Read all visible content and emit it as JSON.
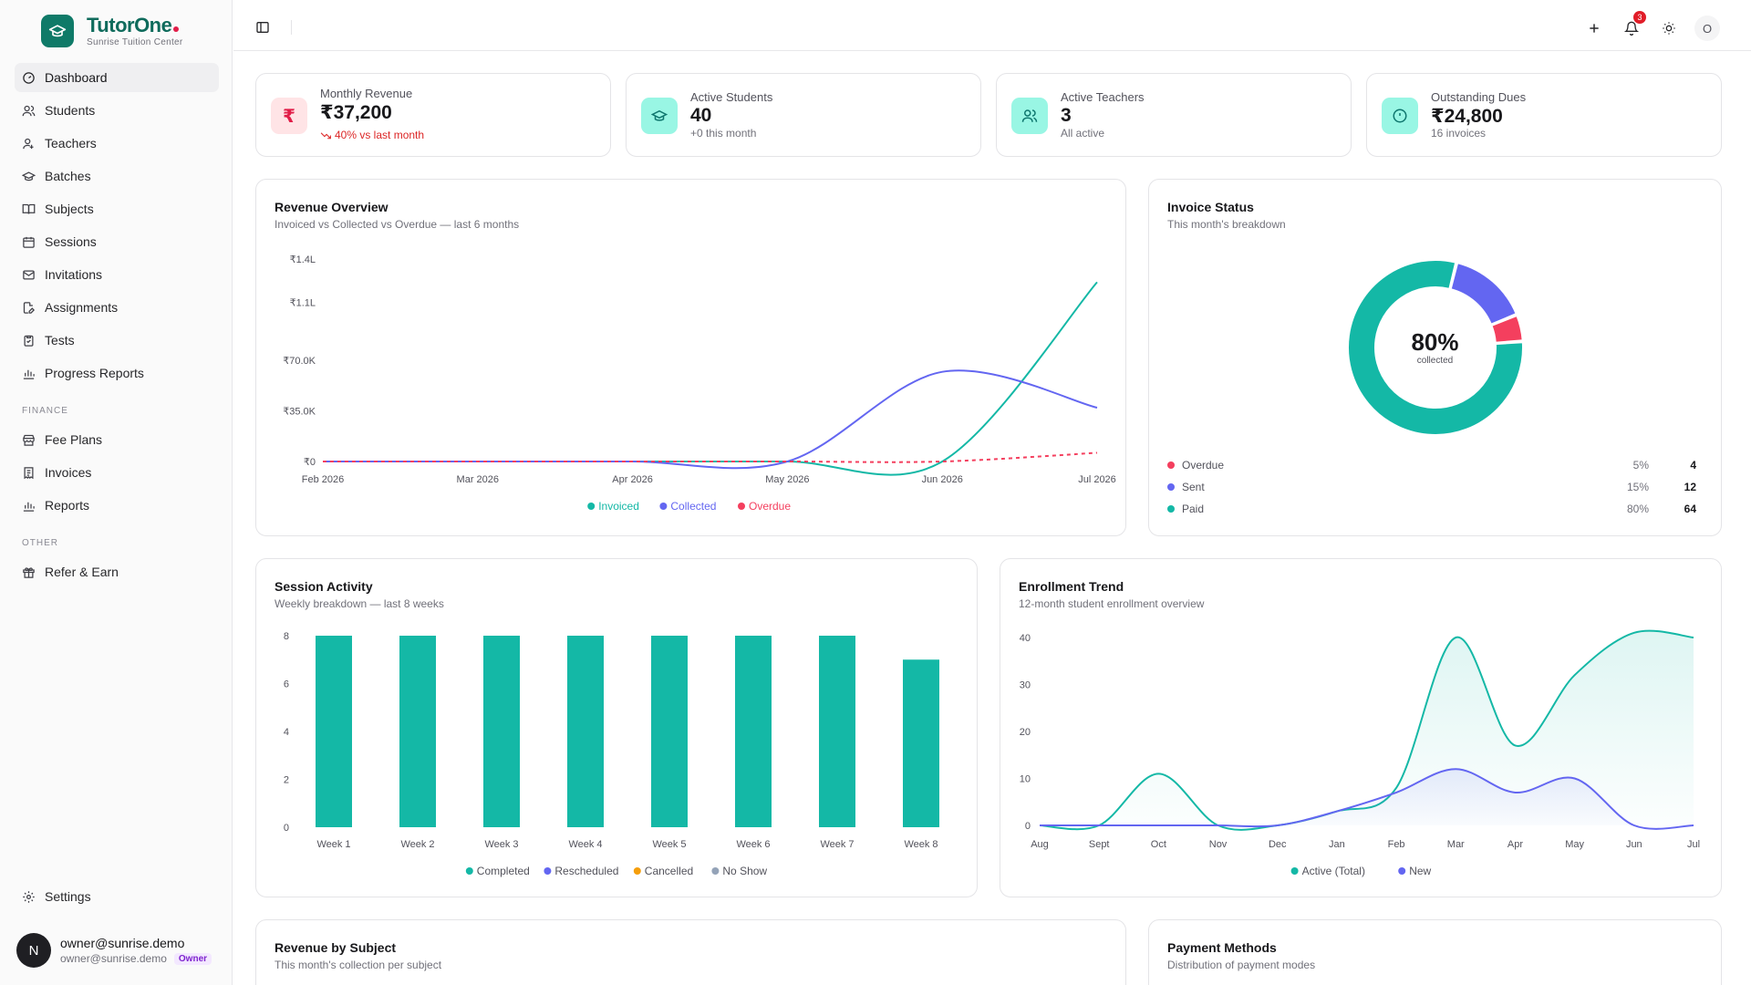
{
  "brand": {
    "name": "TutorOne",
    "subtitle": "Sunrise Tuition Center"
  },
  "nav": {
    "items": [
      {
        "label": "Dashboard",
        "icon": "dashboard-icon",
        "active": true
      },
      {
        "label": "Students",
        "icon": "users-icon"
      },
      {
        "label": "Teachers",
        "icon": "teacher-icon"
      },
      {
        "label": "Batches",
        "icon": "graduation-cap-icon"
      },
      {
        "label": "Subjects",
        "icon": "book-icon"
      },
      {
        "label": "Sessions",
        "icon": "calendar-icon"
      },
      {
        "label": "Invitations",
        "icon": "mail-icon"
      },
      {
        "label": "Assignments",
        "icon": "file-pen-icon"
      },
      {
        "label": "Tests",
        "icon": "clipboard-icon"
      },
      {
        "label": "Progress Reports",
        "icon": "bar-chart-icon"
      }
    ],
    "finance_label": "FINANCE",
    "finance_items": [
      {
        "label": "Fee Plans",
        "icon": "store-icon"
      },
      {
        "label": "Invoices",
        "icon": "receipt-icon"
      },
      {
        "label": "Reports",
        "icon": "bar-chart-icon"
      }
    ],
    "other_label": "OTHER",
    "other_items": [
      {
        "label": "Refer & Earn",
        "icon": "gift-icon"
      }
    ],
    "settings_label": "Settings"
  },
  "user": {
    "initial": "N",
    "name": "owner@sunrise.demo",
    "email": "owner@sunrise.demo",
    "role": "Owner"
  },
  "header": {
    "notification_count": "3",
    "avatar_initial": "O"
  },
  "stats": [
    {
      "label": "Monthly Revenue",
      "value": "₹37,200",
      "sub": "40% vs last month",
      "icon": "rupee-icon",
      "trend": "down"
    },
    {
      "label": "Active Students",
      "value": "40",
      "sub": "+0 this month",
      "icon": "graduation-cap-icon"
    },
    {
      "label": "Active Teachers",
      "value": "3",
      "sub": "All active",
      "icon": "users-icon"
    },
    {
      "label": "Outstanding Dues",
      "value": "₹24,800",
      "sub": "16 invoices",
      "icon": "alert-circle-icon"
    }
  ],
  "revenue_overview": {
    "title": "Revenue Overview",
    "subtitle": "Invoiced vs Collected vs Overdue — last 6 months"
  },
  "invoice_status": {
    "title": "Invoice Status",
    "subtitle": "This month's breakdown",
    "center_value": "80%",
    "center_label": "collected",
    "rows": [
      {
        "label": "Overdue",
        "pct": "5%",
        "count": "4",
        "color": "#f43f5e"
      },
      {
        "label": "Sent",
        "pct": "15%",
        "count": "12",
        "color": "#6366f1"
      },
      {
        "label": "Paid",
        "pct": "80%",
        "count": "64",
        "color": "#14b8a6"
      }
    ]
  },
  "session_activity": {
    "title": "Session Activity",
    "subtitle": "Weekly breakdown — last 8 weeks"
  },
  "enrollment_trend": {
    "title": "Enrollment Trend",
    "subtitle": "12-month student enrollment overview"
  },
  "revenue_by_subject": {
    "title": "Revenue by Subject",
    "subtitle": "This month's collection per subject"
  },
  "payment_methods": {
    "title": "Payment Methods",
    "subtitle": "Distribution of payment modes"
  },
  "colors": {
    "teal": "#14b8a6",
    "indigo": "#6366f1",
    "rose": "#f43f5e",
    "amber": "#f59e0b",
    "slate": "#94a3b8"
  },
  "chart_data": [
    {
      "id": "revenue",
      "type": "line",
      "x": [
        "Feb 2026",
        "Mar 2026",
        "Apr 2026",
        "May 2026",
        "Jun 2026",
        "Jul 2026"
      ],
      "y_ticks": [
        "₹0",
        "₹35.0K",
        "₹70.0K",
        "₹1.1L",
        "₹1.4L"
      ],
      "ylim": [
        0,
        140000
      ],
      "series": [
        {
          "name": "Invoiced",
          "color": "#14b8a6",
          "values": [
            0,
            0,
            0,
            0,
            0,
            124000
          ]
        },
        {
          "name": "Collected",
          "color": "#6366f1",
          "values": [
            0,
            0,
            0,
            0,
            62000,
            37200
          ]
        },
        {
          "name": "Overdue",
          "color": "#f43f5e",
          "dashed": true,
          "values": [
            0,
            0,
            0,
            0,
            0,
            6000
          ]
        }
      ]
    },
    {
      "id": "invoice_status",
      "type": "pie",
      "categories": [
        "Overdue",
        "Sent",
        "Paid"
      ],
      "values": [
        5,
        15,
        80
      ]
    },
    {
      "id": "sessions",
      "type": "bar",
      "categories": [
        "Week 1",
        "Week 2",
        "Week 3",
        "Week 4",
        "Week 5",
        "Week 6",
        "Week 7",
        "Week 8"
      ],
      "y_ticks": [
        "0",
        "2",
        "4",
        "6",
        "8"
      ],
      "ylim": [
        0,
        8
      ],
      "series": [
        {
          "name": "Completed",
          "color": "#14b8a6",
          "values": [
            8,
            8,
            8,
            8,
            8,
            8,
            8,
            7
          ]
        },
        {
          "name": "Rescheduled",
          "color": "#6366f1",
          "values": [
            0,
            0,
            0,
            0,
            0,
            0,
            0,
            0
          ]
        },
        {
          "name": "Cancelled",
          "color": "#f59e0b",
          "values": [
            0,
            0,
            0,
            0,
            0,
            0,
            0,
            0
          ]
        },
        {
          "name": "No Show",
          "color": "#94a3b8",
          "values": [
            0,
            0,
            0,
            0,
            0,
            0,
            0,
            0
          ]
        }
      ]
    },
    {
      "id": "enrollment",
      "type": "area",
      "categories": [
        "Aug",
        "Sept",
        "Oct",
        "Nov",
        "Dec",
        "Jan",
        "Feb",
        "Mar",
        "Apr",
        "May",
        "Jun",
        "Jul"
      ],
      "y_ticks": [
        "0",
        "10",
        "20",
        "30",
        "40"
      ],
      "ylim": [
        0,
        40
      ],
      "series": [
        {
          "name": "Active (Total)",
          "color": "#14b8a6",
          "values": [
            0,
            0,
            11,
            0,
            0,
            3,
            8,
            40,
            17,
            32,
            41,
            40
          ]
        },
        {
          "name": "New",
          "color": "#6366f1",
          "values": [
            0,
            0,
            0,
            0,
            0,
            3,
            7,
            12,
            7,
            10,
            0,
            0
          ]
        }
      ]
    }
  ]
}
